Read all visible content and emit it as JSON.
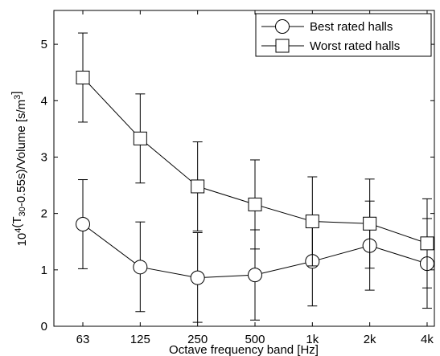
{
  "chart_data": {
    "type": "line",
    "title": "",
    "xlabel": "Octave frequency band [Hz]",
    "ylabel": {
      "parts": [
        {
          "text": "10",
          "style": "normal"
        },
        {
          "text": "4",
          "style": "sup"
        },
        {
          "text": "(T",
          "style": "normal"
        },
        {
          "text": "30",
          "style": "sub"
        },
        {
          "text": "-0.55s)/Volume [s/m",
          "style": "normal"
        },
        {
          "text": "3",
          "style": "sup"
        },
        {
          "text": "]",
          "style": "normal"
        }
      ]
    },
    "categories": [
      "63",
      "125",
      "250",
      "500",
      "1k",
      "2k",
      "4k"
    ],
    "ylim": [
      0,
      5.6
    ],
    "yticks": [
      0,
      1,
      2,
      3,
      4,
      5
    ],
    "grid": false,
    "legend_position": "top-right",
    "series": [
      {
        "name": "Best rated halls",
        "marker": "circle",
        "values": [
          1.81,
          1.05,
          0.86,
          0.91,
          1.15,
          1.43,
          1.11
        ],
        "err_low": [
          1.02,
          0.26,
          0.07,
          0.11,
          0.36,
          0.64,
          0.32
        ],
        "err_high": [
          2.6,
          1.85,
          1.66,
          1.71,
          1.94,
          2.22,
          1.91
        ]
      },
      {
        "name": "Worst rated halls",
        "marker": "square",
        "values": [
          4.41,
          3.33,
          2.48,
          2.16,
          1.86,
          1.82,
          1.47
        ],
        "err_low": [
          3.62,
          2.54,
          1.69,
          1.37,
          1.07,
          1.03,
          0.68
        ],
        "err_high": [
          5.2,
          4.12,
          3.27,
          2.95,
          2.65,
          2.61,
          2.26
        ]
      }
    ]
  }
}
